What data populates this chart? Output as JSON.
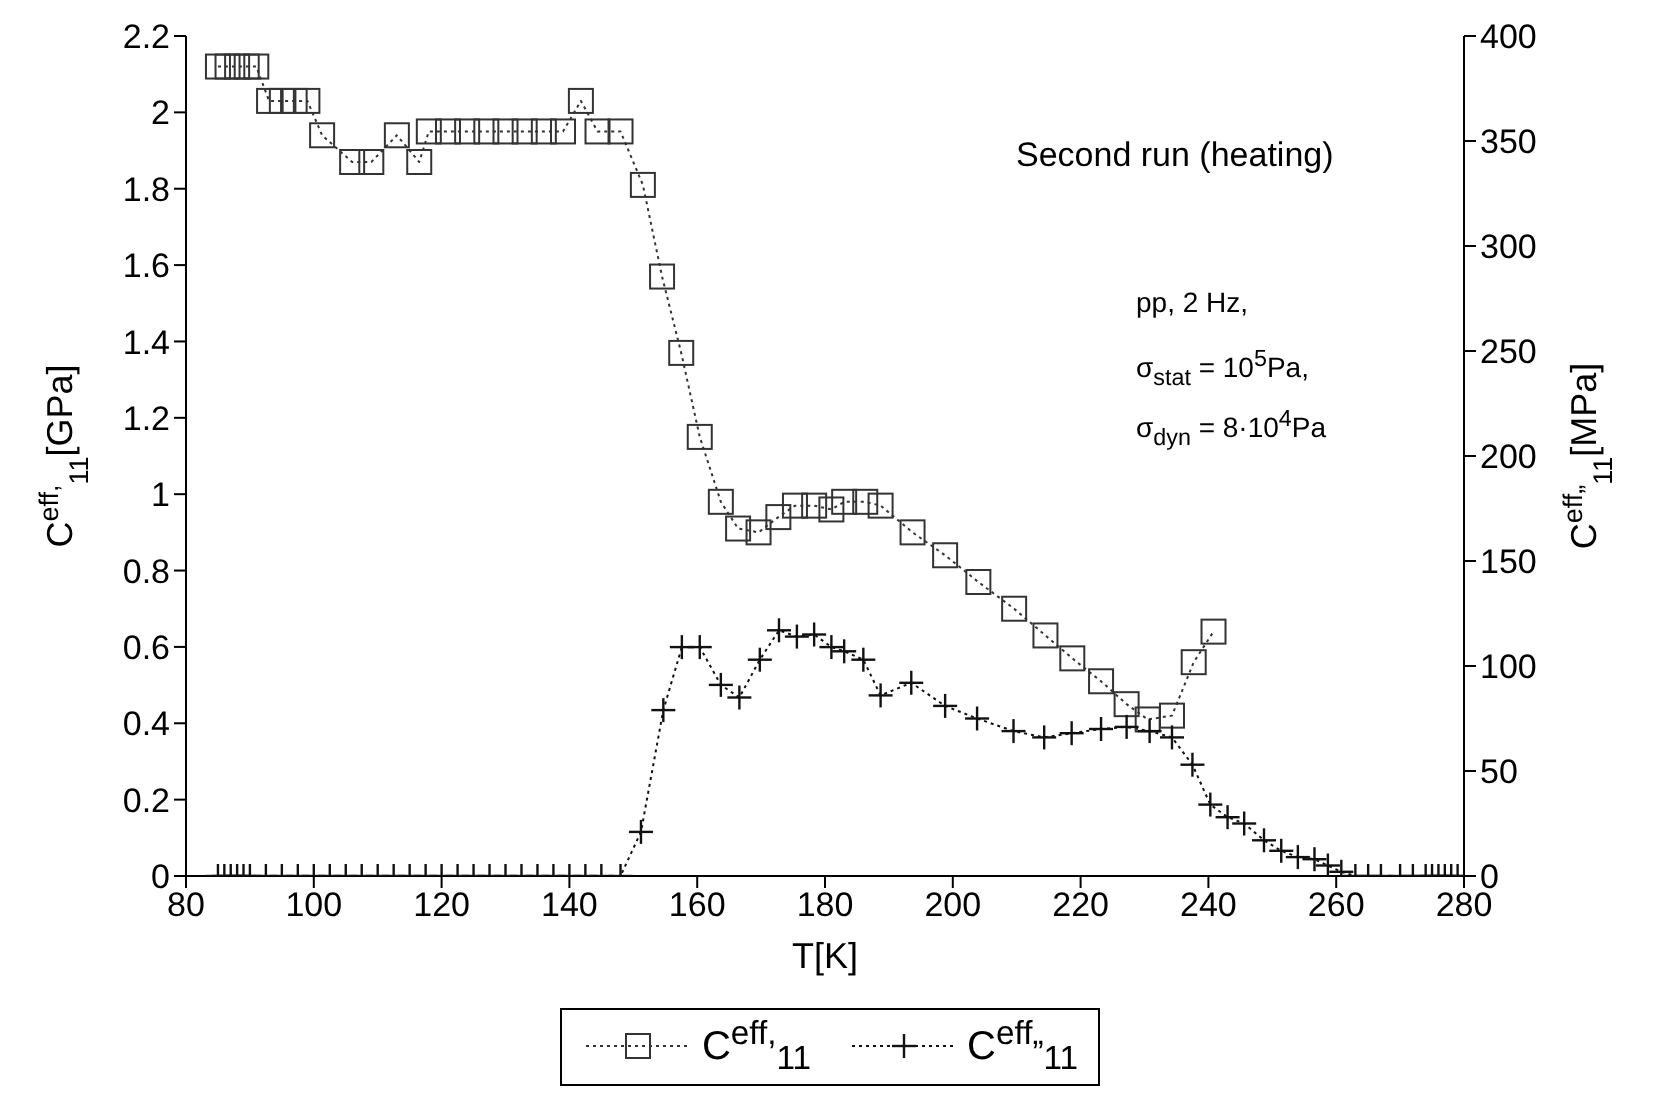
{
  "chart_data": {
    "type": "line",
    "xlabel": "T[K]",
    "ylabel": "C$^{eff,}$$_{11}$[GPa]",
    "y2label": "C$^{eff„}$$_{11}$[MPa]",
    "annotations": [
      "Second run (heating)",
      "pp, 2 Hz,",
      "σ$_{stat}$ = 10$^{5}$Pa,",
      "σ$_{dyn}$ = 8·10$^{4}$Pa"
    ],
    "xlim": [
      80,
      280
    ],
    "xticks": [
      80,
      100,
      120,
      140,
      160,
      180,
      200,
      220,
      240,
      260,
      280
    ],
    "ylim": [
      0,
      2.2
    ],
    "yticks": [
      0,
      0.2,
      0.4,
      0.6,
      0.8,
      1,
      1.2,
      1.4,
      1.6,
      1.8,
      2,
      2.2
    ],
    "y2lim": [
      0,
      400
    ],
    "y2ticks": [
      0,
      50,
      100,
      150,
      200,
      250,
      300,
      350,
      400
    ],
    "grid": false,
    "legend": "bottom",
    "line_style": "dotted",
    "series": [
      {
        "name": "C$^{eff,}$$_{11}$",
        "color": "#333333",
        "marker": "square",
        "x": [
          85,
          86.5,
          88,
          89.5,
          91,
          93,
          95,
          97,
          99,
          101.3,
          106,
          109,
          113,
          116.5,
          118,
          121,
          124,
          127,
          130,
          133,
          136,
          139,
          141.8,
          144.4,
          148,
          151.5,
          154.5,
          157.5,
          160.4,
          163.7,
          166.4,
          169.6,
          172.7,
          175.3,
          178.3,
          181,
          183,
          186.3,
          188.7,
          193.7,
          198.8,
          204,
          209.6,
          214.5,
          218.7,
          223.2,
          227.2,
          230.5,
          234.3,
          237.7,
          240.8
        ],
        "values": [
          2.12,
          2.12,
          2.12,
          2.12,
          2.12,
          2.03,
          2.03,
          2.03,
          2.03,
          1.94,
          1.87,
          1.87,
          1.94,
          1.87,
          1.95,
          1.95,
          1.95,
          1.95,
          1.95,
          1.95,
          1.95,
          1.95,
          2.03,
          1.95,
          1.95,
          1.81,
          1.57,
          1.37,
          1.15,
          0.98,
          0.91,
          0.9,
          0.94,
          0.97,
          0.97,
          0.96,
          0.98,
          0.98,
          0.97,
          0.9,
          0.84,
          0.77,
          0.7,
          0.63,
          0.57,
          0.51,
          0.45,
          0.41,
          0.42,
          0.56,
          0.64
        ]
      },
      {
        "name": "C$^{eff„}$$_{11}$",
        "color": "#111111",
        "marker": "cross",
        "axis": "y2",
        "x": [
          85,
          86,
          87,
          88,
          89,
          90,
          92.5,
          95,
          97.5,
          100,
          102.5,
          105,
          107.5,
          110,
          112.5,
          115,
          117.5,
          120,
          122.5,
          125,
          127.5,
          130,
          132.5,
          135,
          137.5,
          140,
          142.5,
          145,
          148,
          151.2,
          154.7,
          157.6,
          160.4,
          163.7,
          166.6,
          169.8,
          172.8,
          175.6,
          178.3,
          181,
          183,
          186,
          188.7,
          193.5,
          198.8,
          203.8,
          209.5,
          214.3,
          218.6,
          223.2,
          227.2,
          230.8,
          234.3,
          237.5,
          240.3,
          243,
          245.6,
          248.7,
          251.4,
          254,
          256.6,
          258.7,
          260.8,
          263,
          265,
          267,
          270,
          272,
          274,
          275,
          276,
          277,
          278,
          279
        ],
        "values": [
          0,
          0,
          0,
          0,
          0,
          0,
          0,
          0,
          0,
          0,
          0,
          0,
          0,
          0,
          0,
          0,
          0,
          0,
          0,
          0,
          0,
          0,
          0,
          0,
          0,
          0,
          0,
          0,
          0,
          21,
          79,
          109,
          109,
          91,
          85,
          103,
          117,
          114,
          115,
          109,
          107,
          103,
          86,
          92,
          81,
          75,
          69,
          66,
          68,
          70,
          71,
          69,
          66,
          53,
          34,
          28,
          25,
          17,
          12,
          9,
          8,
          5,
          2,
          0,
          0,
          0,
          0,
          0,
          0,
          0,
          0,
          0,
          0,
          0
        ]
      }
    ]
  }
}
